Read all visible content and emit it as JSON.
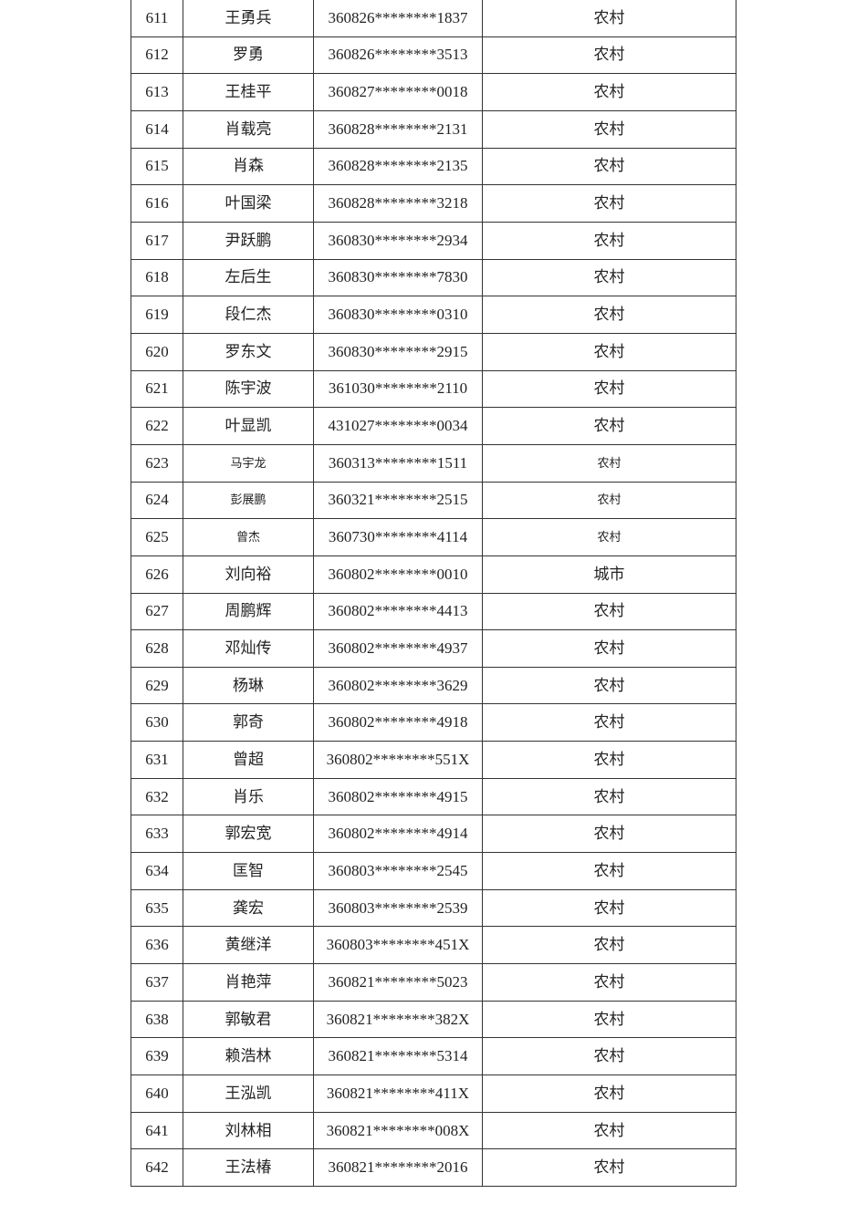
{
  "table": {
    "rows": [
      {
        "no": "611",
        "name": "王勇兵",
        "id": "360826********1837",
        "type": "农村"
      },
      {
        "no": "612",
        "name": "罗勇",
        "id": "360826********3513",
        "type": "农村"
      },
      {
        "no": "613",
        "name": "王桂平",
        "id": "360827********0018",
        "type": "农村"
      },
      {
        "no": "614",
        "name": "肖载亮",
        "id": "360828********2131",
        "type": "农村"
      },
      {
        "no": "615",
        "name": "肖森",
        "id": "360828********2135",
        "type": "农村"
      },
      {
        "no": "616",
        "name": "叶国梁",
        "id": "360828********3218",
        "type": "农村"
      },
      {
        "no": "617",
        "name": "尹跃鹏",
        "id": "360830********2934",
        "type": "农村"
      },
      {
        "no": "618",
        "name": "左后生",
        "id": "360830********7830",
        "type": "农村"
      },
      {
        "no": "619",
        "name": "段仁杰",
        "id": "360830********0310",
        "type": "农村"
      },
      {
        "no": "620",
        "name": "罗东文",
        "id": "360830********2915",
        "type": "农村"
      },
      {
        "no": "621",
        "name": "陈宇波",
        "id": "361030********2110",
        "type": "农村"
      },
      {
        "no": "622",
        "name": "叶显凯",
        "id": "431027********0034",
        "type": "农村"
      },
      {
        "no": "623",
        "name": "马宇龙",
        "id": "360313********1511",
        "type": "农村",
        "small": true
      },
      {
        "no": "624",
        "name": "彭展鹏",
        "id": "360321********2515",
        "type": "农村",
        "small": true
      },
      {
        "no": "625",
        "name": "曾杰",
        "id": "360730********4114",
        "type": "农村",
        "small": true
      },
      {
        "no": "626",
        "name": "刘向裕",
        "id": "360802********0010",
        "type": "城市"
      },
      {
        "no": "627",
        "name": "周鹏辉",
        "id": "360802********4413",
        "type": "农村"
      },
      {
        "no": "628",
        "name": "邓灿传",
        "id": "360802********4937",
        "type": "农村"
      },
      {
        "no": "629",
        "name": "杨琳",
        "id": "360802********3629",
        "type": "农村"
      },
      {
        "no": "630",
        "name": "郭奇",
        "id": "360802********4918",
        "type": "农村"
      },
      {
        "no": "631",
        "name": "曾超",
        "id": "360802********551X",
        "type": "农村"
      },
      {
        "no": "632",
        "name": "肖乐",
        "id": "360802********4915",
        "type": "农村"
      },
      {
        "no": "633",
        "name": "郭宏宽",
        "id": "360802********4914",
        "type": "农村"
      },
      {
        "no": "634",
        "name": "匡智",
        "id": "360803********2545",
        "type": "农村"
      },
      {
        "no": "635",
        "name": "龚宏",
        "id": "360803********2539",
        "type": "农村"
      },
      {
        "no": "636",
        "name": "黄继洋",
        "id": "360803********451X",
        "type": "农村"
      },
      {
        "no": "637",
        "name": "肖艳萍",
        "id": "360821********5023",
        "type": "农村"
      },
      {
        "no": "638",
        "name": "郭敏君",
        "id": "360821********382X",
        "type": "农村"
      },
      {
        "no": "639",
        "name": "赖浩林",
        "id": "360821********5314",
        "type": "农村"
      },
      {
        "no": "640",
        "name": "王泓凯",
        "id": "360821********411X",
        "type": "农村"
      },
      {
        "no": "641",
        "name": "刘林相",
        "id": "360821********008X",
        "type": "农村"
      },
      {
        "no": "642",
        "name": "王法椿",
        "id": "360821********2016",
        "type": "农村"
      }
    ]
  }
}
